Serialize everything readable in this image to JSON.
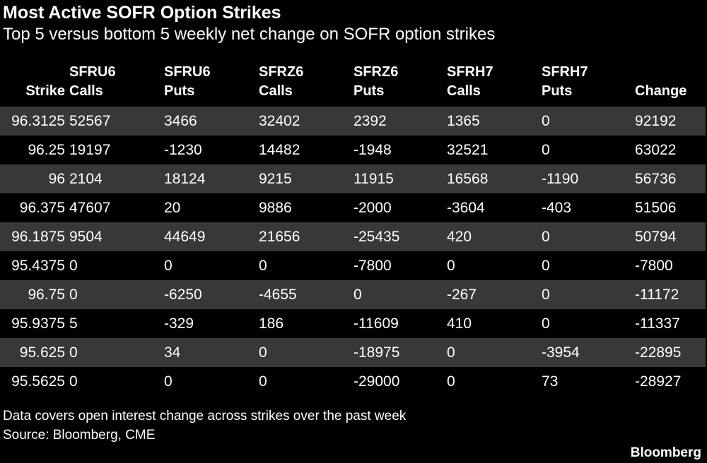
{
  "title": "Most Active SOFR Option Strikes",
  "subtitle": "Top 5 versus bottom 5 weekly net change on SOFR option strikes",
  "footnote": "Data covers open interest change across strikes over the past week",
  "source": "Source: Bloomberg, CME",
  "brand": "Bloomberg",
  "chart_data": {
    "type": "table",
    "columns": [
      {
        "line1": "",
        "line2": "Strike"
      },
      {
        "line1": "SFRU6",
        "line2": "Calls"
      },
      {
        "line1": "SFRU6",
        "line2": "Puts"
      },
      {
        "line1": "SFRZ6",
        "line2": "Calls"
      },
      {
        "line1": "SFRZ6",
        "line2": "Puts"
      },
      {
        "line1": "SFRH7",
        "line2": "Calls"
      },
      {
        "line1": "SFRH7",
        "line2": "Puts"
      },
      {
        "line1": "",
        "line2": "Change"
      }
    ],
    "rows": [
      [
        "96.3125",
        "52567",
        "3466",
        "32402",
        "2392",
        "1365",
        "0",
        "92192"
      ],
      [
        "96.25",
        "19197",
        "-1230",
        "14482",
        "-1948",
        "32521",
        "0",
        "63022"
      ],
      [
        "96",
        "2104",
        "18124",
        "9215",
        "11915",
        "16568",
        "-1190",
        "56736"
      ],
      [
        "96.375",
        "47607",
        "20",
        "9886",
        "-2000",
        "-3604",
        "-403",
        "51506"
      ],
      [
        "96.1875",
        "9504",
        "44649",
        "21656",
        "-25435",
        "420",
        "0",
        "50794"
      ],
      [
        "95.4375",
        "0",
        "0",
        "0",
        "-7800",
        "0",
        "0",
        "-7800"
      ],
      [
        "96.75",
        "0",
        "-6250",
        "-4655",
        "0",
        "-267",
        "0",
        "-11172"
      ],
      [
        "95.9375",
        "5",
        "-329",
        "186",
        "-11609",
        "410",
        "0",
        "-11337"
      ],
      [
        "95.625",
        "0",
        "34",
        "0",
        "-18975",
        "0",
        "-3954",
        "-22895"
      ],
      [
        "95.5625",
        "0",
        "0",
        "0",
        "-29000",
        "0",
        "73",
        "-28927"
      ]
    ]
  }
}
